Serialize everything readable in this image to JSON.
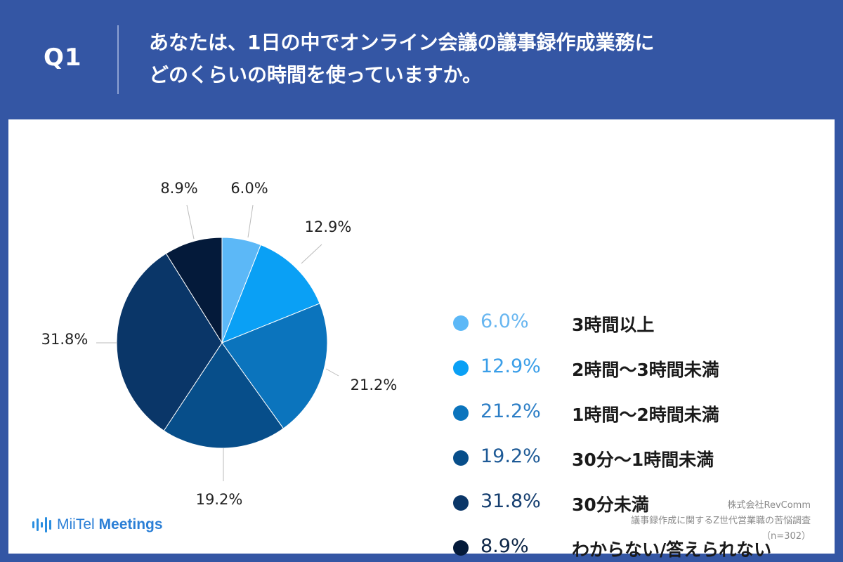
{
  "header": {
    "q_label": "Q1",
    "question_line1": "あなたは、1日の中でオンライン会議の議事録作成業務に",
    "question_line2": "どのくらいの時間を使っていますか。"
  },
  "chart_data": {
    "type": "pie",
    "unit": "%",
    "slices": [
      {
        "label": "3時間以上",
        "value": 6.0,
        "display": "6.0%",
        "color": "#5cb8f7"
      },
      {
        "label": "2時間〜3時間未満",
        "value": 12.9,
        "display": "12.9%",
        "color": "#0aa0f5"
      },
      {
        "label": "1時間〜2時間未満",
        "value": 21.2,
        "display": "21.2%",
        "color": "#0b74bd"
      },
      {
        "label": "30分〜1時間未満",
        "value": 19.2,
        "display": "19.2%",
        "color": "#074e8a"
      },
      {
        "label": "30分未満",
        "value": 31.8,
        "display": "31.8%",
        "color": "#0a3668"
      },
      {
        "label": "わからない/答えられない",
        "value": 8.9,
        "display": "8.9%",
        "color": "#041a3a"
      }
    ],
    "legend_text_colors": [
      "#68b6f0",
      "#3a9ee8",
      "#2c7ec6",
      "#1e5a96",
      "#163f70",
      "#0d2647"
    ]
  },
  "footer": {
    "logo_light": "MiiTel",
    "logo_bold": "Meetings",
    "credit_line1": "株式会社RevComm",
    "credit_line2": "議事録作成に関するZ世代営業職の苦悩調査",
    "credit_line3": "（n=302）"
  }
}
